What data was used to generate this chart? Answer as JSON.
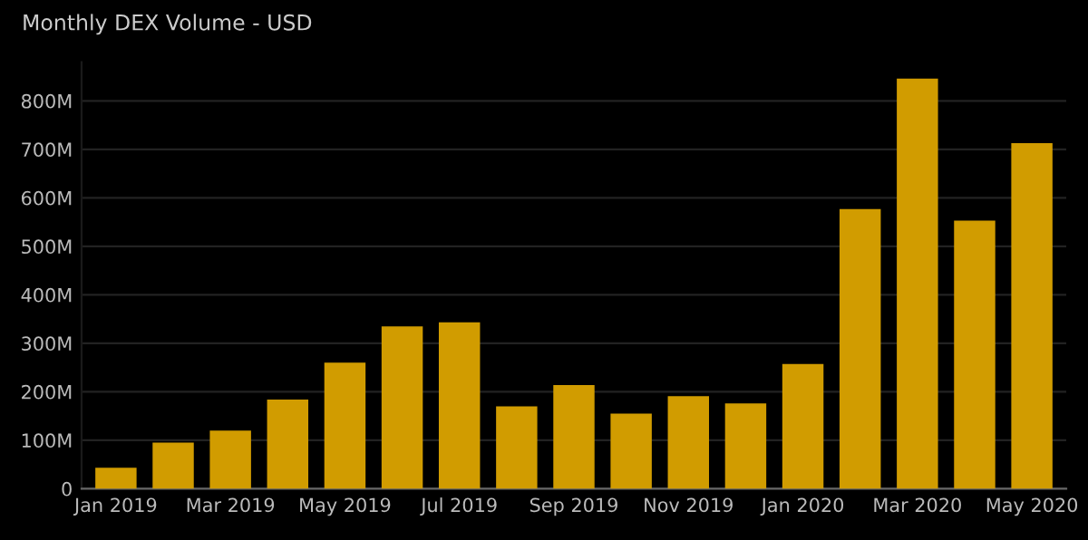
{
  "chart_data": {
    "type": "bar",
    "title": "Monthly DEX Volume - USD",
    "categories": [
      "Jan 2019",
      null,
      "Mar 2019",
      null,
      "May 2019",
      null,
      "Jul 2019",
      null,
      "Sep 2019",
      null,
      "Nov 2019",
      null,
      "Jan 2020",
      null,
      "Mar 2020",
      null,
      "May 2020"
    ],
    "values": [
      43000000,
      95000000,
      120000000,
      184000000,
      260000000,
      335000000,
      343000000,
      170000000,
      214000000,
      155000000,
      191000000,
      176000000,
      257000000,
      577000000,
      846000000,
      553000000,
      713000000
    ],
    "color": "#d19c00",
    "ylim": [
      0,
      880000000
    ],
    "yticks": [
      {
        "value": 0,
        "label": "0"
      },
      {
        "value": 100000000,
        "label": "100M"
      },
      {
        "value": 200000000,
        "label": "200M"
      },
      {
        "value": 300000000,
        "label": "300M"
      },
      {
        "value": 400000000,
        "label": "400M"
      },
      {
        "value": 500000000,
        "label": "500M"
      },
      {
        "value": 600000000,
        "label": "600M"
      },
      {
        "value": 700000000,
        "label": "700M"
      },
      {
        "value": 800000000,
        "label": "800M"
      }
    ],
    "grid": "y"
  }
}
